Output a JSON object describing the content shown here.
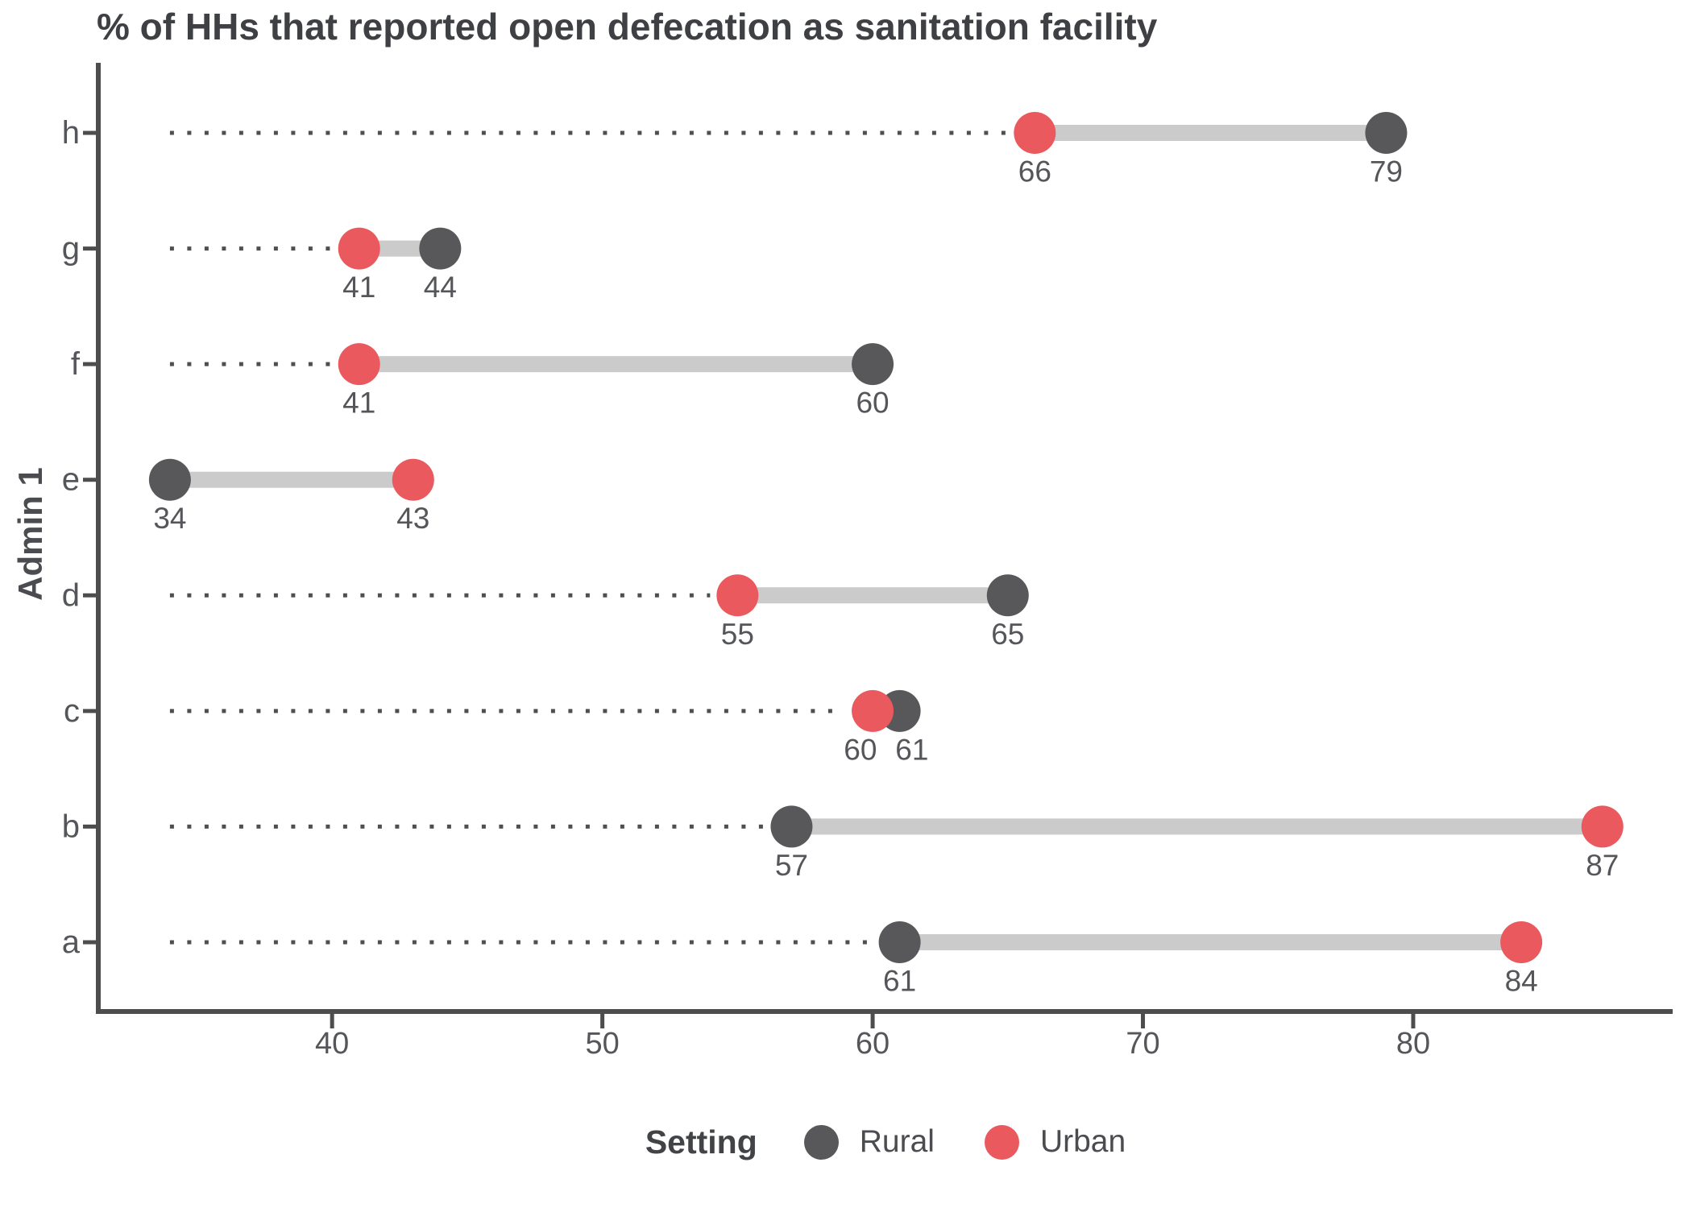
{
  "title": "% of HHs that reported open defecation as sanitation facility",
  "colors": {
    "rural": "#58585A",
    "urban": "#E9595D",
    "connector": "#CBCBCB",
    "leader": "#4F4F4F",
    "axis": "#4D4D4D",
    "text": "#55565A",
    "title": "#3E4044"
  },
  "legend": {
    "title": "Setting",
    "items": [
      {
        "label": "Rural",
        "color": "#58585A"
      },
      {
        "label": "Urban",
        "color": "#E9595D"
      }
    ]
  },
  "chart_data": {
    "type": "scatter",
    "variant": "dumbbell",
    "title": "% of HHs that reported open defecation as sanitation facility",
    "xlabel": "",
    "ylabel": "Admin 1",
    "categories": [
      "h",
      "g",
      "f",
      "e",
      "d",
      "c",
      "b",
      "a"
    ],
    "series": [
      {
        "name": "Rural",
        "color": "#58585A",
        "values": [
          79,
          44,
          60,
          34,
          65,
          61,
          57,
          61
        ]
      },
      {
        "name": "Urban",
        "color": "#E9595D",
        "values": [
          66,
          41,
          41,
          43,
          55,
          60,
          87,
          84
        ]
      }
    ],
    "xlim": [
      31.35,
      89.6
    ],
    "xticks": [
      40,
      50,
      60,
      70,
      80
    ],
    "grid": false,
    "legend_position": "bottom",
    "legend_title": "Setting",
    "value_labels_shown": true
  }
}
